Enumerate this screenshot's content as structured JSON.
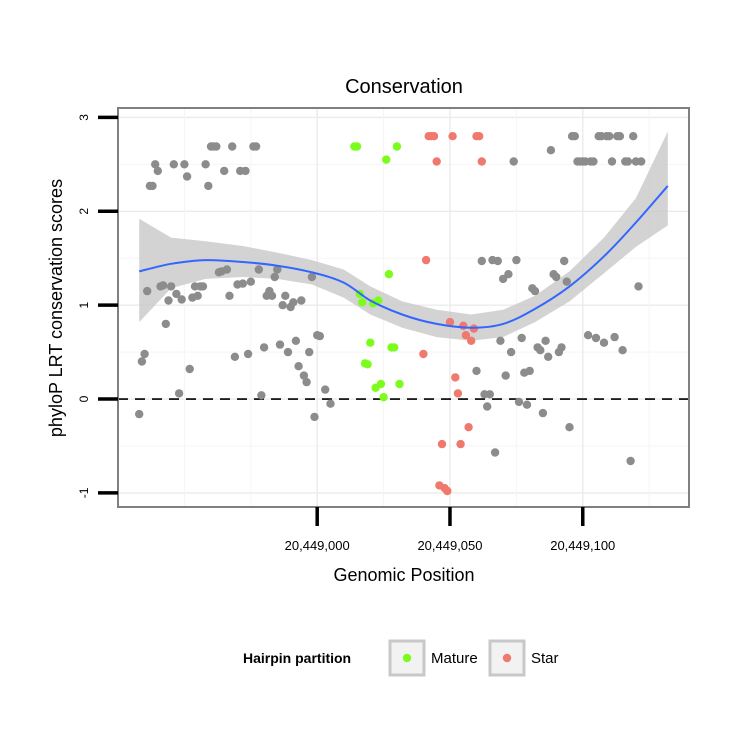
{
  "chart_data": {
    "type": "scatter",
    "title": "Conservation",
    "xlabel": "Genomic Position",
    "ylabel": "phyloP LRT conservation scores",
    "xlim": [
      20448925,
      20449140
    ],
    "ylim": [
      -1.15,
      3.1
    ],
    "x_ticks": [
      {
        "value": 20449000,
        "label": "20,449,000"
      },
      {
        "value": 20449050,
        "label": "20,449,050"
      },
      {
        "value": 20449100,
        "label": "20,449,100"
      }
    ],
    "y_ticks": [
      {
        "value": -1,
        "label": "-1"
      },
      {
        "value": 0,
        "label": "0"
      },
      {
        "value": 1,
        "label": "1"
      },
      {
        "value": 2,
        "label": "2"
      },
      {
        "value": 3,
        "label": "3"
      }
    ],
    "reference_line": {
      "y": 0,
      "style": "dashed"
    },
    "legend": {
      "title": "Hairpin partition",
      "position": "bottom",
      "entries": [
        {
          "label": "Mature",
          "color": "#7CFC1C"
        },
        {
          "label": "Star",
          "color": "#F0796E"
        }
      ]
    },
    "colors": {
      "other": "#8C8C8C",
      "mature": "#7CFC1C",
      "star": "#F0796E",
      "smooth": "#3366FF",
      "band": "#C8C8C8"
    },
    "smooth": {
      "x": [
        20448933,
        20448945,
        20448958,
        20448972,
        20448985,
        20448998,
        20449010,
        20449020,
        20449032,
        20449045,
        20449058,
        20449070,
        20449082,
        20449095,
        20449108,
        20449120,
        20449132
      ],
      "y": [
        1.36,
        1.44,
        1.48,
        1.46,
        1.42,
        1.35,
        1.24,
        1.05,
        0.9,
        0.8,
        0.76,
        0.8,
        0.96,
        1.2,
        1.52,
        1.88,
        2.27
      ],
      "lower": [
        0.82,
        1.18,
        1.28,
        1.3,
        1.28,
        1.22,
        1.08,
        0.9,
        0.76,
        0.66,
        0.62,
        0.66,
        0.82,
        1.04,
        1.34,
        1.62,
        1.85
      ],
      "upper": [
        1.92,
        1.72,
        1.68,
        1.63,
        1.56,
        1.48,
        1.38,
        1.2,
        1.04,
        0.95,
        0.9,
        0.95,
        1.1,
        1.36,
        1.72,
        2.14,
        2.85
      ]
    },
    "series": [
      {
        "name": "Other",
        "color": "#8C8C8C",
        "points": [
          [
            20448933,
            -0.16
          ],
          [
            20448934,
            0.4
          ],
          [
            20448935,
            0.48
          ],
          [
            20448936,
            1.15
          ],
          [
            20448937,
            2.27
          ],
          [
            20448938,
            2.27
          ],
          [
            20448939,
            2.5
          ],
          [
            20448940,
            2.43
          ],
          [
            20448941,
            1.2
          ],
          [
            20448942,
            1.21
          ],
          [
            20448943,
            0.8
          ],
          [
            20448944,
            1.05
          ],
          [
            20448945,
            1.2
          ],
          [
            20448946,
            2.5
          ],
          [
            20448947,
            1.12
          ],
          [
            20448948,
            0.06
          ],
          [
            20448949,
            1.06
          ],
          [
            20448950,
            2.5
          ],
          [
            20448951,
            2.37
          ],
          [
            20448952,
            0.32
          ],
          [
            20448953,
            1.08
          ],
          [
            20448954,
            1.2
          ],
          [
            20448955,
            1.1
          ],
          [
            20448956,
            1.2
          ],
          [
            20448957,
            1.2
          ],
          [
            20448958,
            2.5
          ],
          [
            20448959,
            2.27
          ],
          [
            20448960,
            2.69
          ],
          [
            20448961,
            2.69
          ],
          [
            20448962,
            2.69
          ],
          [
            20448963,
            1.35
          ],
          [
            20448964,
            1.36
          ],
          [
            20448965,
            2.43
          ],
          [
            20448966,
            1.38
          ],
          [
            20448967,
            1.1
          ],
          [
            20448968,
            2.69
          ],
          [
            20448969,
            0.45
          ],
          [
            20448970,
            1.22
          ],
          [
            20448971,
            2.43
          ],
          [
            20448972,
            1.23
          ],
          [
            20448973,
            2.43
          ],
          [
            20448974,
            0.48
          ],
          [
            20448975,
            1.25
          ],
          [
            20448976,
            2.69
          ],
          [
            20448977,
            2.69
          ],
          [
            20448978,
            1.38
          ],
          [
            20448979,
            0.04
          ],
          [
            20448980,
            0.55
          ],
          [
            20448981,
            1.1
          ],
          [
            20448982,
            1.15
          ],
          [
            20448983,
            1.1
          ],
          [
            20448984,
            1.3
          ],
          [
            20448985,
            1.38
          ],
          [
            20448986,
            0.58
          ],
          [
            20448987,
            1.0
          ],
          [
            20448988,
            1.1
          ],
          [
            20448989,
            0.5
          ],
          [
            20448990,
            0.98
          ],
          [
            20448991,
            1.03
          ],
          [
            20448992,
            0.62
          ],
          [
            20448993,
            0.35
          ],
          [
            20448994,
            1.05
          ],
          [
            20448995,
            0.25
          ],
          [
            20448996,
            0.18
          ],
          [
            20448997,
            0.5
          ],
          [
            20448998,
            1.3
          ],
          [
            20448999,
            -0.19
          ],
          [
            20449000,
            0.68
          ],
          [
            20449001,
            0.67
          ],
          [
            20449003,
            0.1
          ],
          [
            20449005,
            -0.05
          ],
          [
            20449060,
            0.3
          ],
          [
            20449062,
            1.47
          ],
          [
            20449063,
            0.05
          ],
          [
            20449064,
            -0.08
          ],
          [
            20449065,
            0.05
          ],
          [
            20449066,
            1.48
          ],
          [
            20449067,
            -0.57
          ],
          [
            20449068,
            1.47
          ],
          [
            20449069,
            0.62
          ],
          [
            20449070,
            1.28
          ],
          [
            20449071,
            0.25
          ],
          [
            20449072,
            1.33
          ],
          [
            20449073,
            0.5
          ],
          [
            20449074,
            2.53
          ],
          [
            20449075,
            1.48
          ],
          [
            20449076,
            -0.03
          ],
          [
            20449077,
            0.65
          ],
          [
            20449078,
            0.28
          ],
          [
            20449079,
            -0.06
          ],
          [
            20449080,
            0.3
          ],
          [
            20449081,
            1.18
          ],
          [
            20449082,
            1.15
          ],
          [
            20449083,
            0.55
          ],
          [
            20449084,
            0.52
          ],
          [
            20449085,
            -0.15
          ],
          [
            20449086,
            0.62
          ],
          [
            20449087,
            0.45
          ],
          [
            20449088,
            2.65
          ],
          [
            20449089,
            1.33
          ],
          [
            20449090,
            1.3
          ],
          [
            20449091,
            0.5
          ],
          [
            20449092,
            0.55
          ],
          [
            20449093,
            1.47
          ],
          [
            20449094,
            1.25
          ],
          [
            20449095,
            -0.3
          ],
          [
            20449096,
            2.8
          ],
          [
            20449097,
            2.8
          ],
          [
            20449098,
            2.53
          ],
          [
            20449099,
            2.53
          ],
          [
            20449100,
            2.53
          ],
          [
            20449101,
            2.53
          ],
          [
            20449102,
            0.68
          ],
          [
            20449103,
            2.53
          ],
          [
            20449104,
            2.53
          ],
          [
            20449105,
            0.65
          ],
          [
            20449106,
            2.8
          ],
          [
            20449107,
            2.8
          ],
          [
            20449108,
            0.6
          ],
          [
            20449109,
            2.8
          ],
          [
            20449110,
            2.8
          ],
          [
            20449111,
            2.53
          ],
          [
            20449112,
            0.66
          ],
          [
            20449113,
            2.8
          ],
          [
            20449114,
            2.8
          ],
          [
            20449115,
            0.52
          ],
          [
            20449116,
            2.53
          ],
          [
            20449117,
            2.53
          ],
          [
            20449118,
            -0.66
          ],
          [
            20449119,
            2.8
          ],
          [
            20449120,
            2.53
          ],
          [
            20449121,
            1.2
          ],
          [
            20449122,
            2.53
          ]
        ]
      },
      {
        "name": "Mature",
        "color": "#7CFC1C",
        "points": [
          [
            20449014,
            2.69
          ],
          [
            20449015,
            2.69
          ],
          [
            20449016,
            1.12
          ],
          [
            20449017,
            1.03
          ],
          [
            20449018,
            0.38
          ],
          [
            20449019,
            0.37
          ],
          [
            20449020,
            0.6
          ],
          [
            20449021,
            1.02
          ],
          [
            20449022,
            0.12
          ],
          [
            20449023,
            1.05
          ],
          [
            20449024,
            0.16
          ],
          [
            20449025,
            0.02
          ],
          [
            20449026,
            2.55
          ],
          [
            20449027,
            1.33
          ],
          [
            20449028,
            0.55
          ],
          [
            20449029,
            0.55
          ],
          [
            20449030,
            2.69
          ],
          [
            20449031,
            0.16
          ]
        ]
      },
      {
        "name": "Star",
        "color": "#F0796E",
        "points": [
          [
            20449040,
            0.48
          ],
          [
            20449041,
            1.48
          ],
          [
            20449042,
            2.8
          ],
          [
            20449043,
            2.8
          ],
          [
            20449044,
            2.8
          ],
          [
            20449045,
            2.53
          ],
          [
            20449046,
            -0.92
          ],
          [
            20449047,
            -0.48
          ],
          [
            20449048,
            -0.95
          ],
          [
            20449049,
            -0.98
          ],
          [
            20449050,
            0.82
          ],
          [
            20449051,
            2.8
          ],
          [
            20449052,
            0.23
          ],
          [
            20449053,
            0.06
          ],
          [
            20449054,
            -0.48
          ],
          [
            20449055,
            0.78
          ],
          [
            20449056,
            0.68
          ],
          [
            20449057,
            -0.3
          ],
          [
            20449058,
            0.62
          ],
          [
            20449059,
            0.75
          ],
          [
            20449060,
            2.8
          ],
          [
            20449061,
            2.8
          ],
          [
            20449062,
            2.53
          ]
        ]
      }
    ]
  }
}
